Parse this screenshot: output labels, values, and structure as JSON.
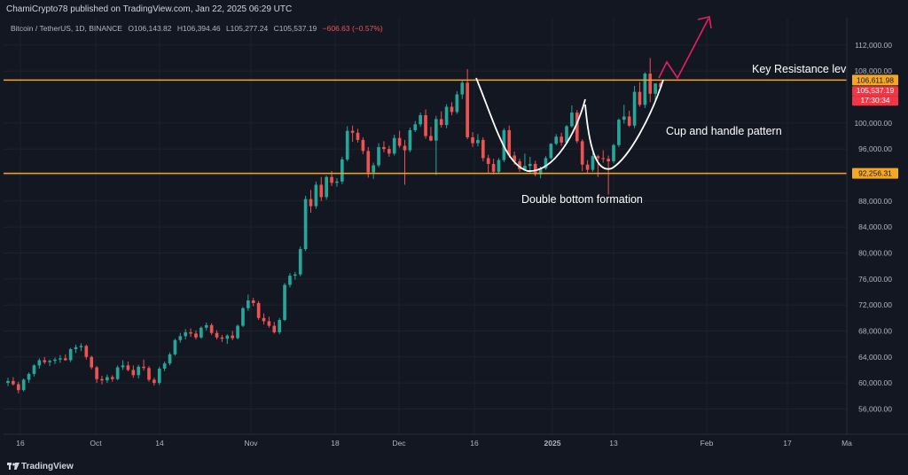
{
  "header": {
    "published": "ChamiCrypto78 published on TradingView.com, Jan 22, 2025 06:29 UTC",
    "symbol": "Bitcoin / TetherUS, 1D, BINANCE",
    "open": "O106,143.82",
    "high": "H106,394.46",
    "low": "L105,277.24",
    "close": "C105,537.19",
    "change": "−606.63 (−0.57%)"
  },
  "footer": {
    "brand": "TradingView",
    "logo_icon": "tradingview-logo-icon"
  },
  "colors": {
    "background": "#131722",
    "up": "#26a69a",
    "down": "#ef5350",
    "line": "#f5a623",
    "arrow": "#e91e63",
    "text": "#d1d4dc"
  },
  "chart_data": {
    "type": "candlestick",
    "title": "",
    "symbol": "Bitcoin / TetherUS, 1D, BINANCE",
    "x_tick_labels": [
      "16",
      "Oct",
      "14",
      "Nov",
      "18",
      "Dec",
      "16",
      "2025",
      "13",
      "Feb",
      "17",
      "Ma"
    ],
    "y_tick_labels": [
      "112,000.00",
      "100,000.00",
      "96,000.00",
      "88,000.00",
      "84,000.00",
      "80,000.00",
      "76,000.00",
      "72,000.00",
      "68,000.00",
      "64,000.00",
      "60,000.00",
      "56,000.00"
    ],
    "ylim": [
      52000,
      115000
    ],
    "grid": true,
    "price_labels": [
      {
        "text": "106,611.98",
        "kind": "resistance"
      },
      {
        "text": "105,537.19",
        "kind": "last_price"
      },
      {
        "text": "17:30:34",
        "kind": "countdown"
      },
      {
        "text": "92,256.31",
        "kind": "support"
      }
    ],
    "horizontal_lines": [
      {
        "price": 106611.98,
        "label": "Key Resistance level"
      },
      {
        "price": 92256.31
      }
    ],
    "annotations": [
      "Key Resistance level",
      "Cup and handle pattern",
      "Double bottom formation"
    ],
    "candles": [
      [
        60000,
        60800,
        59500,
        60300
      ],
      [
        60300,
        60900,
        59600,
        59800
      ],
      [
        59800,
        60200,
        58400,
        58900
      ],
      [
        58900,
        60700,
        58700,
        60500
      ],
      [
        60500,
        61600,
        60000,
        61400
      ],
      [
        61400,
        62900,
        61000,
        62700
      ],
      [
        62700,
        63800,
        62200,
        63500
      ],
      [
        63500,
        64000,
        62900,
        63200
      ],
      [
        63200,
        63600,
        62600,
        63400
      ],
      [
        63400,
        63900,
        62900,
        63600
      ],
      [
        63600,
        64300,
        63100,
        63800
      ],
      [
        63800,
        64400,
        63400,
        63500
      ],
      [
        63500,
        65400,
        63200,
        65200
      ],
      [
        65200,
        65900,
        64600,
        65500
      ],
      [
        65500,
        66100,
        64900,
        65700
      ],
      [
        65700,
        65900,
        63600,
        64000
      ],
      [
        64000,
        64200,
        62100,
        62400
      ],
      [
        62400,
        62600,
        60000,
        60600
      ],
      [
        60600,
        61100,
        59800,
        60400
      ],
      [
        60400,
        61300,
        60000,
        60900
      ],
      [
        60900,
        61200,
        60200,
        60600
      ],
      [
        60600,
        62700,
        60400,
        62400
      ],
      [
        62400,
        63500,
        62000,
        62700
      ],
      [
        62700,
        63300,
        61800,
        62000
      ],
      [
        62000,
        62700,
        60800,
        61200
      ],
      [
        61200,
        62800,
        60700,
        62500
      ],
      [
        62500,
        63600,
        61900,
        62300
      ],
      [
        62300,
        62600,
        60200,
        60500
      ],
      [
        60500,
        60800,
        59600,
        60000
      ],
      [
        60000,
        62500,
        59700,
        62200
      ],
      [
        62200,
        63300,
        61800,
        63000
      ],
      [
        63000,
        64700,
        62700,
        64400
      ],
      [
        64400,
        66800,
        64200,
        66600
      ],
      [
        66600,
        67700,
        66200,
        67200
      ],
      [
        67200,
        68300,
        66700,
        67800
      ],
      [
        67800,
        68400,
        67100,
        67600
      ],
      [
        67600,
        68100,
        66700,
        67000
      ],
      [
        67000,
        68700,
        66800,
        68500
      ],
      [
        68500,
        69300,
        68100,
        68900
      ],
      [
        68900,
        69200,
        67400,
        67700
      ],
      [
        67700,
        68100,
        66700,
        67000
      ],
      [
        67000,
        67400,
        66300,
        66800
      ],
      [
        66800,
        67500,
        66000,
        67300
      ],
      [
        67300,
        68000,
        66600,
        66900
      ],
      [
        66900,
        69000,
        66700,
        68800
      ],
      [
        68800,
        71700,
        68600,
        71500
      ],
      [
        71500,
        73600,
        71100,
        72700
      ],
      [
        72700,
        73100,
        71800,
        72300
      ],
      [
        72300,
        72600,
        69700,
        70000
      ],
      [
        70000,
        70700,
        69000,
        69500
      ],
      [
        69500,
        70200,
        68500,
        68800
      ],
      [
        68800,
        69400,
        67600,
        67800
      ],
      [
        67800,
        70000,
        67500,
        69700
      ],
      [
        69700,
        75400,
        69500,
        75100
      ],
      [
        75100,
        76900,
        74700,
        76500
      ],
      [
        76500,
        77100,
        75900,
        76700
      ],
      [
        76700,
        81000,
        76400,
        80600
      ],
      [
        80600,
        88800,
        80300,
        88300
      ],
      [
        88300,
        89700,
        86200,
        87200
      ],
      [
        87200,
        91000,
        86800,
        90500
      ],
      [
        90500,
        91700,
        88000,
        88600
      ],
      [
        88600,
        91900,
        88200,
        91700
      ],
      [
        91700,
        92600,
        90300,
        90800
      ],
      [
        90800,
        91500,
        90200,
        91000
      ],
      [
        91000,
        94800,
        90600,
        94400
      ],
      [
        94400,
        99500,
        94100,
        98800
      ],
      [
        98800,
        99600,
        97100,
        98500
      ],
      [
        98500,
        99100,
        97000,
        97400
      ],
      [
        97400,
        97800,
        95200,
        95700
      ],
      [
        95700,
        96300,
        91600,
        92400
      ],
      [
        92400,
        93900,
        91400,
        93500
      ],
      [
        93500,
        96900,
        93200,
        96300
      ],
      [
        96300,
        97200,
        95500,
        96000
      ],
      [
        96000,
        96500,
        94800,
        95300
      ],
      [
        95300,
        98200,
        95000,
        97700
      ],
      [
        97700,
        98800,
        96200,
        96500
      ],
      [
        96500,
        97400,
        90500,
        95800
      ],
      [
        95800,
        99300,
        95500,
        98900
      ],
      [
        98900,
        100300,
        98600,
        99800
      ],
      [
        99800,
        101600,
        99400,
        101200
      ],
      [
        101200,
        102100,
        97600,
        98000
      ],
      [
        98000,
        99400,
        97200,
        97300
      ],
      [
        97300,
        101100,
        92000,
        100600
      ],
      [
        100600,
        101800,
        99300,
        99700
      ],
      [
        99700,
        102900,
        99200,
        102500
      ],
      [
        102500,
        103200,
        101200,
        101700
      ],
      [
        101700,
        104900,
        101400,
        104400
      ],
      [
        104400,
        106500,
        103700,
        106200
      ],
      [
        106200,
        108300,
        97500,
        97800
      ],
      [
        97800,
        98600,
        96300,
        96900
      ],
      [
        96900,
        98300,
        96400,
        97400
      ],
      [
        97400,
        97800,
        94100,
        94600
      ],
      [
        94600,
        95100,
        92200,
        93700
      ],
      [
        93700,
        94500,
        92100,
        92500
      ],
      [
        92500,
        94600,
        92200,
        94300
      ],
      [
        94300,
        99200,
        94000,
        98900
      ],
      [
        98900,
        99600,
        94700,
        95000
      ],
      [
        95000,
        95600,
        93600,
        94100
      ],
      [
        94100,
        94500,
        92500,
        92900
      ],
      [
        92900,
        95300,
        92700,
        93400
      ],
      [
        93400,
        94800,
        92300,
        93700
      ],
      [
        93700,
        94200,
        91800,
        92100
      ],
      [
        92100,
        93300,
        91500,
        93000
      ],
      [
        93000,
        94900,
        92800,
        94600
      ],
      [
        94600,
        96900,
        94400,
        96800
      ],
      [
        96800,
        98300,
        96600,
        97900
      ],
      [
        97900,
        98500,
        96500,
        97000
      ],
      [
        97000,
        99700,
        96800,
        99500
      ],
      [
        99500,
        102700,
        99300,
        101600
      ],
      [
        101600,
        102000,
        96900,
        97200
      ],
      [
        97200,
        97500,
        92600,
        93600
      ],
      [
        93600,
        94300,
        92200,
        92800
      ],
      [
        92800,
        95400,
        92500,
        94900
      ],
      [
        94900,
        95100,
        91700,
        94600
      ],
      [
        94600,
        95800,
        93900,
        94500
      ],
      [
        94500,
        95000,
        89000,
        94100
      ],
      [
        94100,
        96800,
        93800,
        96600
      ],
      [
        96600,
        100700,
        96300,
        100500
      ],
      [
        100500,
        102800,
        99900,
        101000
      ],
      [
        101000,
        101900,
        99400,
        99600
      ],
      [
        99600,
        105700,
        99200,
        104800
      ],
      [
        104800,
        106300,
        102500,
        102800
      ],
      [
        102800,
        107800,
        102300,
        107600
      ],
      [
        107600,
        110000,
        103200,
        104500
      ],
      [
        104500,
        105700,
        103400,
        106100
      ],
      [
        106100,
        106400,
        105300,
        105537
      ]
    ]
  }
}
